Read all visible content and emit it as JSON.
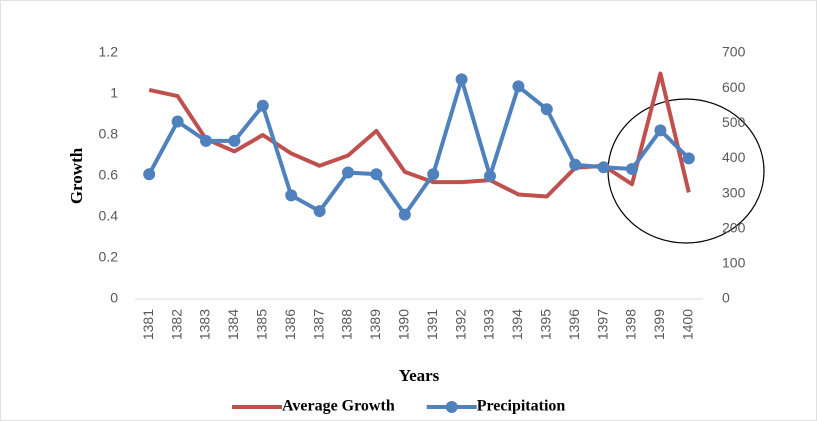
{
  "chart_data": {
    "type": "line",
    "x_label": "Years",
    "y_label": "Growth",
    "categories": [
      "1381",
      "1382",
      "1383",
      "1384",
      "1385",
      "1386",
      "1387",
      "1388",
      "1389",
      "1390",
      "1391",
      "1392",
      "1393",
      "1394",
      "1395",
      "1396",
      "1397",
      "1398",
      "1399",
      "1400"
    ],
    "series": [
      {
        "name": "Average Growth",
        "color": "#c0504d",
        "axis": "y",
        "values": [
          1.02,
          0.99,
          0.78,
          0.72,
          0.8,
          0.71,
          0.65,
          0.7,
          0.82,
          0.62,
          0.57,
          0.57,
          0.58,
          0.51,
          0.5,
          0.64,
          0.65,
          0.56,
          1.1,
          0.52
        ]
      },
      {
        "name": "Precipitation",
        "color": "#4f81bd",
        "axis": "y2",
        "markers": true,
        "values": [
          355,
          505,
          450,
          450,
          550,
          295,
          250,
          360,
          355,
          240,
          355,
          625,
          350,
          605,
          540,
          382,
          375,
          370,
          480,
          400
        ]
      }
    ],
    "ylim": [
      0,
      1.2
    ],
    "yticks": [
      0,
      0.2,
      0.4,
      0.6,
      0.8,
      1,
      1.2
    ],
    "y2lim": [
      0,
      700
    ],
    "y2ticks": [
      0,
      100,
      200,
      300,
      400,
      500,
      600,
      700
    ],
    "grid": false,
    "legend": "bottom"
  }
}
